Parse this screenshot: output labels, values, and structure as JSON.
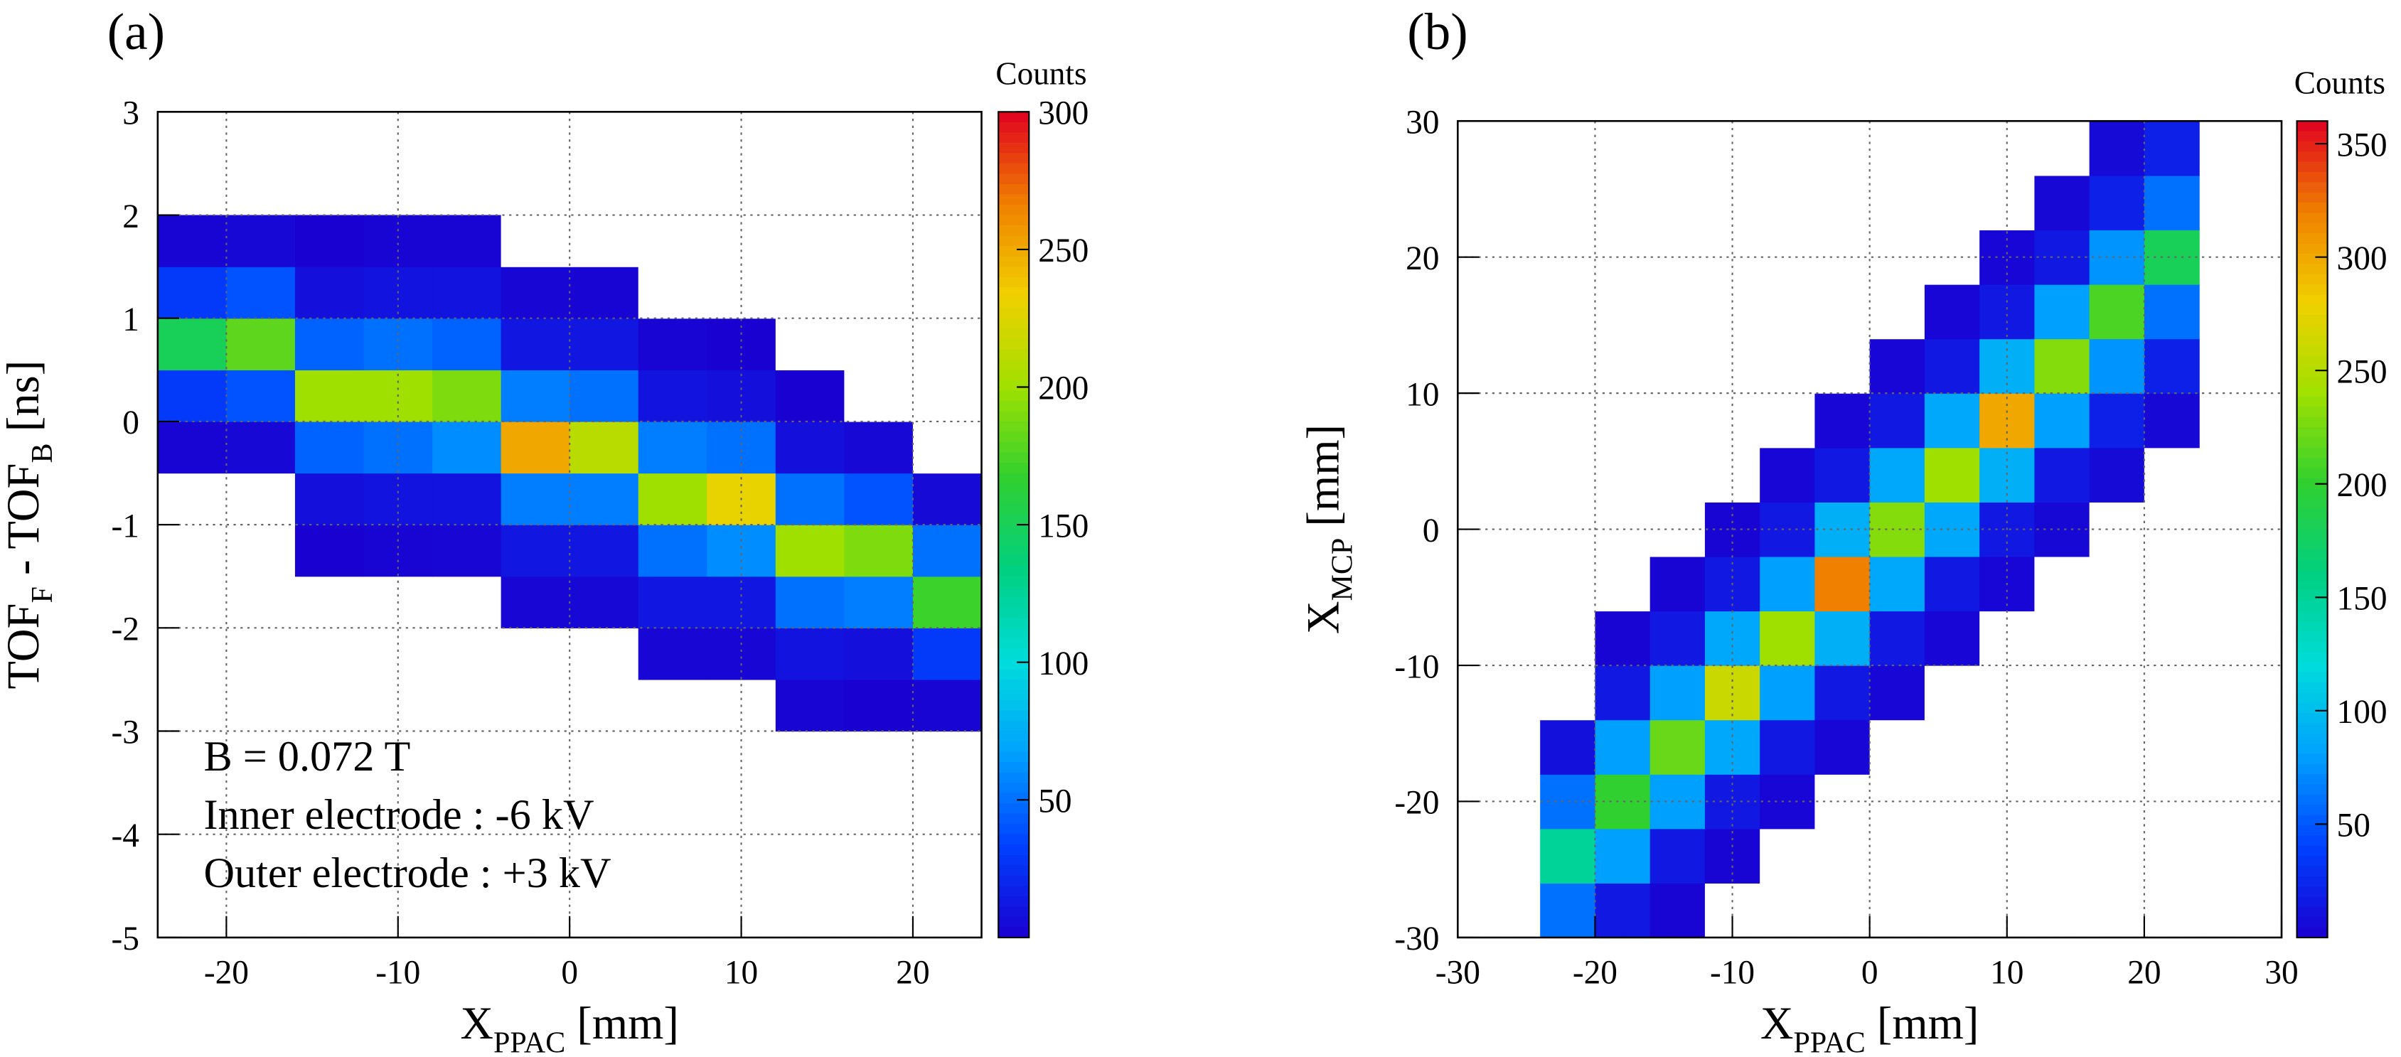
{
  "chart_data": [
    {
      "type": "heatmap",
      "title": "(a)",
      "xlabel": [
        "X",
        "PPAC",
        " [mm]"
      ],
      "ylabel": [
        "TOF",
        "F",
        " - TOF",
        "B",
        " [ns]"
      ],
      "zlabel": "Counts",
      "xlim": [
        -24,
        24
      ],
      "ylim": [
        -5,
        3
      ],
      "xticks": [
        -20,
        -10,
        0,
        10,
        20
      ],
      "yticks": [
        -5,
        -4,
        -3,
        -2,
        -1,
        0,
        1,
        2,
        3
      ],
      "zlim": [
        0,
        300
      ],
      "zticks": [
        50,
        100,
        150,
        200,
        250,
        300
      ],
      "grid": true,
      "colormap": [
        "#1a00d0",
        "#0040ff",
        "#00a0ff",
        "#00dcdc",
        "#00d080",
        "#30d030",
        "#a0e000",
        "#f0d000",
        "#f08000",
        "#e00020"
      ],
      "xbins": [
        -24,
        -20,
        -16,
        -12,
        -8,
        -4,
        0,
        4,
        8,
        12,
        16,
        20,
        24
      ],
      "ybins": [
        -3,
        -2.5,
        -2,
        -1.5,
        -1,
        -0.5,
        0,
        0.5,
        1,
        1.5,
        2
      ],
      "z": [
        [
          0,
          0,
          0,
          0,
          0,
          0,
          0,
          0,
          0,
          2,
          1,
          2
        ],
        [
          0,
          0,
          0,
          0,
          0,
          0,
          0,
          3,
          3,
          10,
          8,
          30
        ],
        [
          0,
          0,
          0,
          0,
          0,
          3,
          4,
          12,
          12,
          50,
          55,
          170
        ],
        [
          0,
          0,
          1,
          2,
          3,
          12,
          12,
          50,
          60,
          200,
          190,
          50
        ],
        [
          0,
          0,
          8,
          10,
          10,
          55,
          55,
          200,
          230,
          50,
          40,
          5
        ],
        [
          2,
          4,
          45,
          50,
          60,
          250,
          210,
          55,
          50,
          8,
          4,
          0
        ],
        [
          30,
          40,
          200,
          200,
          190,
          55,
          50,
          10,
          8,
          1,
          0,
          0
        ],
        [
          150,
          180,
          45,
          50,
          45,
          12,
          12,
          2,
          1,
          0,
          0,
          0
        ],
        [
          30,
          40,
          8,
          10,
          10,
          3,
          2,
          0,
          0,
          0,
          0,
          0
        ],
        [
          2,
          4,
          1,
          2,
          2,
          0,
          0,
          0,
          0,
          0,
          0,
          0
        ]
      ],
      "annotations": [
        "B = 0.072 T",
        "Inner electrode : -6 kV",
        "Outer electrode : +3 kV"
      ]
    },
    {
      "type": "heatmap",
      "title": "(b)",
      "xlabel": [
        "X",
        "PPAC",
        " [mm]"
      ],
      "ylabel": [
        "X",
        "MCP",
        " [mm]"
      ],
      "zlabel": "Counts",
      "xlim": [
        -30,
        30
      ],
      "ylim": [
        -30,
        30
      ],
      "xticks": [
        -30,
        -20,
        -10,
        0,
        10,
        20,
        30
      ],
      "yticks": [
        -30,
        -20,
        -10,
        0,
        10,
        20,
        30
      ],
      "zlim": [
        0,
        360
      ],
      "zticks": [
        50,
        100,
        150,
        200,
        250,
        300,
        350
      ],
      "grid": true,
      "colormap": [
        "#1a00d0",
        "#0040ff",
        "#00a0ff",
        "#00dcdc",
        "#00d080",
        "#30d030",
        "#a0e000",
        "#f0d000",
        "#f08000",
        "#e00020"
      ],
      "xbins": [
        -24,
        -20,
        -16,
        -12,
        -8,
        -4,
        0,
        4,
        8,
        12,
        16,
        20,
        24
      ],
      "ybins": [
        -30,
        -26,
        -22,
        -18,
        -14,
        -10,
        -6,
        -2,
        2,
        6,
        10,
        14,
        18,
        22,
        26,
        30
      ],
      "z": [
        [
          60,
          15,
          3,
          0,
          0,
          0,
          0,
          0,
          0,
          0,
          0,
          0
        ],
        [
          150,
          80,
          15,
          3,
          0,
          0,
          0,
          0,
          0,
          0,
          0,
          0
        ],
        [
          60,
          200,
          80,
          15,
          4,
          0,
          0,
          0,
          0,
          0,
          0,
          0
        ],
        [
          10,
          80,
          220,
          85,
          15,
          4,
          0,
          0,
          0,
          0,
          0,
          0
        ],
        [
          0,
          15,
          80,
          260,
          80,
          15,
          4,
          0,
          0,
          0,
          0,
          0
        ],
        [
          0,
          3,
          15,
          85,
          240,
          90,
          15,
          4,
          0,
          0,
          0,
          0
        ],
        [
          0,
          0,
          3,
          15,
          80,
          320,
          85,
          15,
          4,
          0,
          0,
          0
        ],
        [
          0,
          0,
          0,
          3,
          15,
          90,
          230,
          85,
          15,
          5,
          0,
          0
        ],
        [
          0,
          0,
          0,
          0,
          4,
          15,
          85,
          240,
          90,
          15,
          6,
          0
        ],
        [
          0,
          0,
          0,
          0,
          0,
          4,
          15,
          85,
          300,
          80,
          20,
          5
        ],
        [
          0,
          0,
          0,
          0,
          0,
          0,
          4,
          15,
          90,
          230,
          75,
          20
        ],
        [
          0,
          0,
          0,
          0,
          0,
          0,
          0,
          4,
          15,
          80,
          210,
          60
        ],
        [
          0,
          0,
          0,
          0,
          0,
          0,
          0,
          0,
          4,
          15,
          75,
          180
        ],
        [
          0,
          0,
          0,
          0,
          0,
          0,
          0,
          0,
          0,
          5,
          20,
          60
        ],
        [
          0,
          0,
          0,
          0,
          0,
          0,
          0,
          0,
          0,
          0,
          6,
          20
        ]
      ]
    }
  ]
}
